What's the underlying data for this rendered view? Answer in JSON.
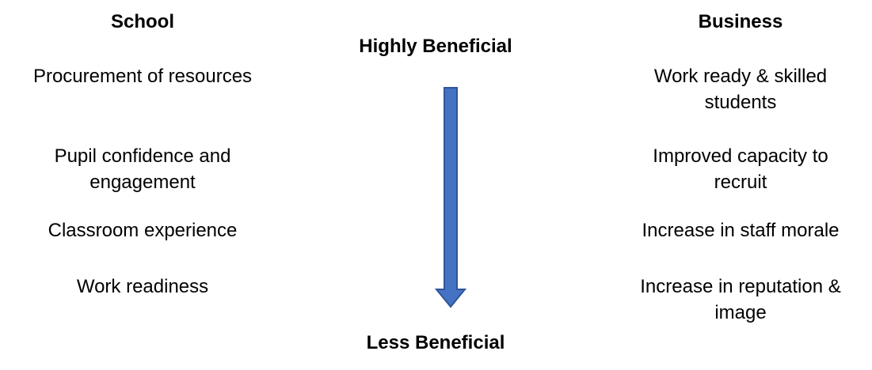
{
  "headers": {
    "school": "School",
    "business": "Business"
  },
  "scale": {
    "top": "Highly Beneficial",
    "bottom": "Less Beneficial"
  },
  "school_items": [
    [
      "Procurement of resources"
    ],
    [
      "Pupil confidence and",
      "engagement"
    ],
    [
      "Classroom experience"
    ],
    [
      "Work readiness"
    ]
  ],
  "business_items": [
    [
      "Work ready & skilled",
      "students"
    ],
    [
      "Improved capacity to",
      "recruit"
    ],
    [
      "Increase in staff morale"
    ],
    [
      "Increase in reputation &",
      "image"
    ]
  ],
  "colors": {
    "arrow_fill": "#4472C4",
    "arrow_stroke": "#2F5597"
  }
}
